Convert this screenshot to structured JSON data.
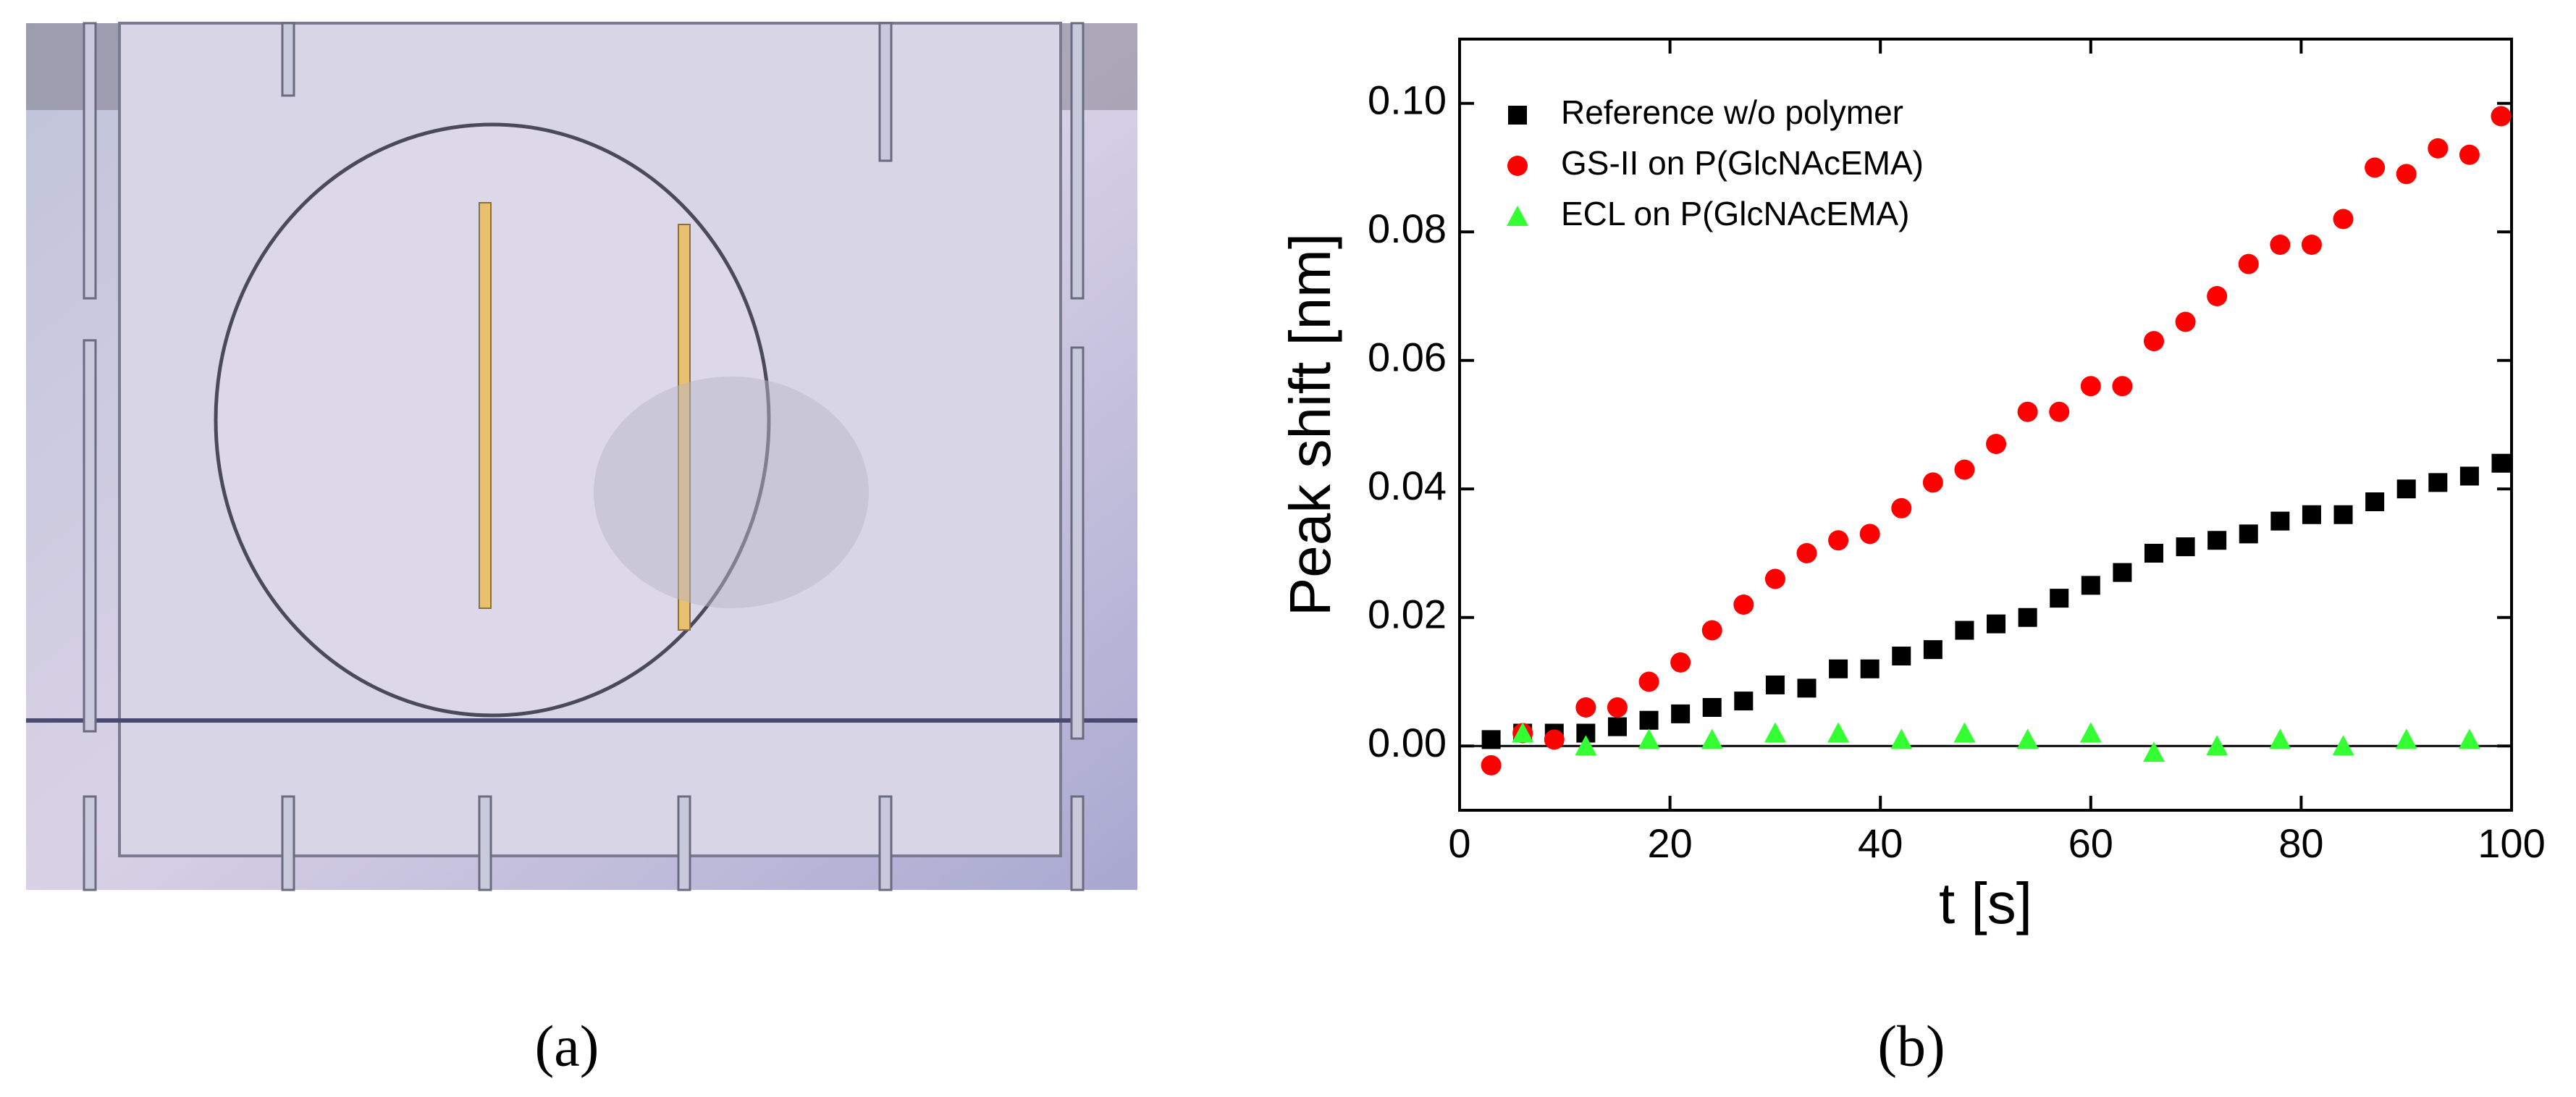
{
  "panels": [
    "(a)",
    "(b)"
  ],
  "chart_data": {
    "type": "scatter",
    "xlabel": "t [s]",
    "ylabel": "Peak shift [nm]",
    "xlim": [
      0,
      100
    ],
    "ylim": [
      -0.01,
      0.11
    ],
    "xticks": [
      0,
      20,
      40,
      60,
      80,
      100
    ],
    "yticks": [
      {
        "value": 0,
        "label": "0.00"
      },
      0.02,
      0.04,
      0.06,
      0.08,
      {
        "value": 0.1,
        "label": "0.10"
      }
    ],
    "zero_line": true,
    "legend": "upper left",
    "series": [
      {
        "name": "Reference w/o polymer",
        "color": "#000000",
        "marker": "square",
        "x": [
          3,
          6,
          9,
          12,
          15,
          18,
          21,
          24,
          27,
          30,
          33,
          36,
          39,
          42,
          45,
          48,
          51,
          54,
          57,
          60,
          63,
          66,
          69,
          72,
          75,
          78,
          81,
          84,
          87,
          90,
          93,
          96,
          99
        ],
        "values": [
          0.001,
          0.002,
          0.002,
          0.002,
          0.003,
          0.004,
          0.005,
          0.006,
          0.007,
          0.0095,
          0.009,
          0.012,
          0.012,
          0.014,
          0.015,
          0.018,
          0.019,
          0.02,
          0.023,
          0.025,
          0.027,
          0.03,
          0.031,
          0.032,
          0.033,
          0.035,
          0.036,
          0.036,
          0.038,
          0.04,
          0.041,
          0.042,
          0.044
        ]
      },
      {
        "name": "GS-II on P(GlcNAcEMA)",
        "color": "#ff0000",
        "marker": "circle",
        "x": [
          3,
          6,
          9,
          12,
          15,
          18,
          21,
          24,
          27,
          30,
          33,
          36,
          39,
          42,
          45,
          48,
          51,
          54,
          57,
          60,
          63,
          66,
          69,
          72,
          75,
          78,
          81,
          84,
          87,
          90,
          93,
          96,
          99
        ],
        "values": [
          -0.003,
          0.002,
          0.001,
          0.006,
          0.006,
          0.01,
          0.013,
          0.018,
          0.022,
          0.026,
          0.03,
          0.032,
          0.033,
          0.037,
          0.041,
          0.043,
          0.047,
          0.052,
          0.052,
          0.056,
          0.056,
          0.063,
          0.066,
          0.07,
          0.075,
          0.078,
          0.078,
          0.082,
          0.09,
          0.089,
          0.093,
          0.092,
          0.098
        ]
      },
      {
        "name": "ECL on P(GlcNAcEMA)",
        "color": "#33ff33",
        "marker": "triangle",
        "x": [
          6,
          12,
          18,
          24,
          30,
          36,
          42,
          48,
          54,
          60,
          66,
          72,
          78,
          84,
          90,
          96
        ],
        "values": [
          0.002,
          0,
          0.001,
          0.001,
          0.002,
          0.002,
          0.001,
          0.002,
          0.001,
          0.002,
          -0.001,
          0,
          0.001,
          0,
          0.001,
          0.001
        ]
      }
    ]
  }
}
